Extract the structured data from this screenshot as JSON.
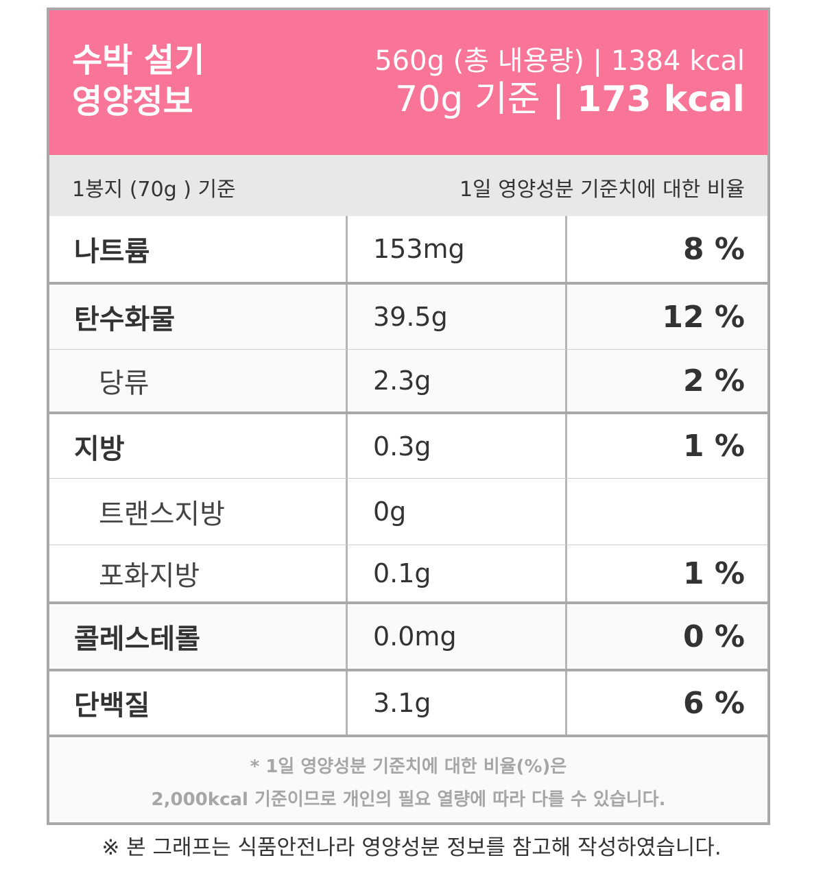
{
  "header": {
    "title_line1": "수박 설기",
    "title_line2": "영양정보",
    "total_line": "560g (총 내용량) | 1384 kcal",
    "serving_basis": "70g 기준",
    "serving_kcal": "173 kcal",
    "sep": "|",
    "color": "#f97597"
  },
  "subheader": {
    "left": "1봉지 (70g ) 기준",
    "right": "1일 영양성분 기준치에 대한 비율"
  },
  "rows": [
    {
      "name": "나트륨",
      "amount": "153mg",
      "percent": "8 %"
    },
    {
      "name": "탄수화물",
      "amount": "39.5g",
      "percent": "12 %"
    },
    {
      "name": "당류",
      "amount": "2.3g",
      "percent": "2 %"
    },
    {
      "name": "지방",
      "amount": "0.3g",
      "percent": "1 %"
    },
    {
      "name": "트랜스지방",
      "amount": "0g",
      "percent": ""
    },
    {
      "name": "포화지방",
      "amount": "0.1g",
      "percent": "1 %"
    },
    {
      "name": "콜레스테롤",
      "amount": "0.0mg",
      "percent": "0 %"
    },
    {
      "name": "단백질",
      "amount": "3.1g",
      "percent": "6 %"
    }
  ],
  "footnote": {
    "line1": "* 1일 영양성분 기준치에 대한 비율(%)은",
    "line2": "2,000kcal 기준이므로 개인의 필요 열량에 따라 다를 수 있습니다."
  },
  "caption": "※ 본 그래프는 식품안전나라 영양성분 정보를 참고해 작성하였습니다."
}
